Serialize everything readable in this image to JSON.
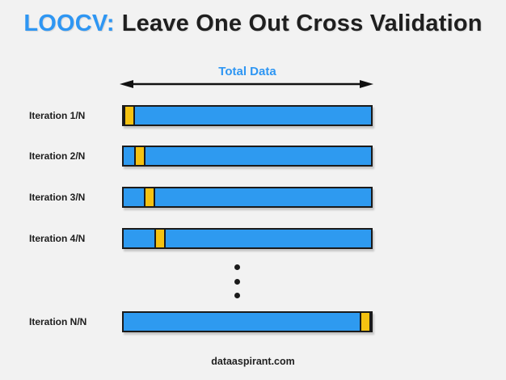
{
  "title": {
    "prefix": "LOOCV:",
    "main": "Leave One Out Cross Validation"
  },
  "axis": {
    "label": "Total Data"
  },
  "diagram": {
    "rows": [
      {
        "label": "Iteration 1/N",
        "test_chunk": "1"
      },
      {
        "label": "Iteration 2/N",
        "test_chunk": "2"
      },
      {
        "label": "Iteration 3/N",
        "test_chunk": "3"
      },
      {
        "label": "Iteration 4/N",
        "test_chunk": "4"
      },
      {
        "label": "Iteration N/N",
        "test_chunk": "N"
      }
    ],
    "ellipsis_dot_count": 3
  },
  "footer": {
    "text": "dataaspirant.com"
  },
  "colors": {
    "background": "#F2F2F2",
    "bar_fill": "#2E9AF0",
    "test_fill": "#F5C211",
    "outline": "#1B1B1B",
    "accent_text": "#2E96F3",
    "dark_text": "#1F1F1F"
  }
}
